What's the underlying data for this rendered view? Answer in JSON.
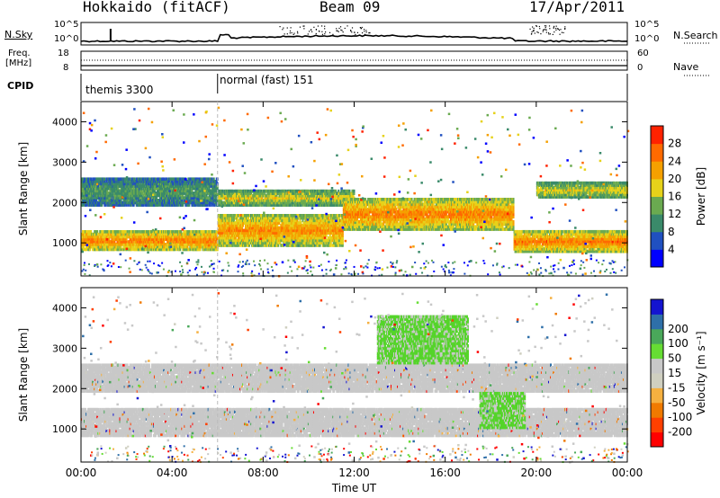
{
  "header": {
    "radar": "Hokkaido (fitACF)",
    "beam": "Beam 09",
    "date": "17/Apr/2011"
  },
  "left_labels": {
    "nsky": "N.Sky",
    "freq_line1": "Freq.",
    "freq_line2": "[MHz]",
    "cpid": "CPID"
  },
  "right_labels": {
    "nsearch": "N.Search",
    "nave": "Nave"
  },
  "noise_axis": {
    "left_ticks": [
      "10^5",
      "10^0"
    ],
    "right_ticks": [
      "10^5",
      "10^0"
    ]
  },
  "freq_axis": {
    "left_ticks": [
      "18",
      "8"
    ],
    "right_ticks": [
      "60",
      "0"
    ]
  },
  "cpid_modes": [
    {
      "label": "themis 3300",
      "start_hour": 0
    },
    {
      "label": "normal (fast) 151",
      "start_hour": 6
    }
  ],
  "colors": {
    "power_scale": [
      "#0000ff",
      "#2050c0",
      "#3a8a6a",
      "#6aaa50",
      "#e6d21a",
      "#f5a000",
      "#ff6a00",
      "#ff2200"
    ],
    "velocity_scale": [
      "#ff0000",
      "#ff4000",
      "#f07a00",
      "#f5b040",
      "#cfcfc0",
      "#c8c8c8",
      "#66dd33",
      "#4aa85a",
      "#2e6fa8",
      "#1414d0"
    ],
    "gray": "#c8c8c8"
  },
  "chart_data": [
    {
      "type": "heatmap",
      "name_key": "power",
      "title": "",
      "xlabel": "",
      "ylabel": "Slant Range [km]",
      "xlim": [
        0,
        24
      ],
      "ylim": [
        180,
        4500
      ],
      "x_ticks": [
        "00:00",
        "04:00",
        "08:00",
        "12:00",
        "16:00",
        "20:00",
        "00:00"
      ],
      "y_ticks": [
        1000,
        2000,
        3000,
        4000
      ],
      "colorbar": {
        "label": "Power [dB]",
        "ticks": [
          4,
          8,
          12,
          16,
          20,
          24,
          28
        ],
        "range": [
          0,
          32
        ]
      },
      "echo_bands": [
        {
          "t_start": 0,
          "t_end": 6,
          "range_low": 800,
          "range_high": 1300,
          "level_db": 28
        },
        {
          "t_start": 0,
          "t_end": 6,
          "range_low": 1900,
          "range_high": 2600,
          "level_db": 12
        },
        {
          "t_start": 6,
          "t_end": 11.5,
          "range_low": 900,
          "range_high": 1700,
          "level_db": 26
        },
        {
          "t_start": 6,
          "t_end": 12,
          "range_low": 1900,
          "range_high": 2300,
          "level_db": 20
        },
        {
          "t_start": 11.5,
          "t_end": 19,
          "range_low": 1300,
          "range_high": 2100,
          "level_db": 27
        },
        {
          "t_start": 19,
          "t_end": 24,
          "range_low": 750,
          "range_high": 1300,
          "level_db": 28
        },
        {
          "t_start": 20,
          "t_end": 24,
          "range_low": 2100,
          "range_high": 2500,
          "level_db": 20
        }
      ]
    },
    {
      "type": "heatmap",
      "name_key": "velocity",
      "title": "",
      "xlabel": "Time UT",
      "ylabel": "Slant Range [km]",
      "xlim": [
        0,
        24
      ],
      "ylim": [
        180,
        4500
      ],
      "x_ticks": [
        "00:00",
        "04:00",
        "08:00",
        "12:00",
        "16:00",
        "20:00",
        "00:00"
      ],
      "y_ticks": [
        1000,
        2000,
        3000,
        4000
      ],
      "colorbar": {
        "label": "Velocity [m s^-1]",
        "ticks": [
          -200,
          -100,
          -50,
          -15,
          15,
          50,
          100,
          200
        ]
      },
      "echo_bands": [
        {
          "t_start": 0,
          "t_end": 24,
          "range_low": 800,
          "range_high": 1500,
          "velocity": 0
        },
        {
          "t_start": 0,
          "t_end": 24,
          "range_low": 1900,
          "range_high": 2600,
          "velocity": 0
        },
        {
          "t_start": 17.5,
          "t_end": 19.5,
          "range_low": 1000,
          "range_high": 1900,
          "velocity": 30
        },
        {
          "t_start": 13,
          "t_end": 17,
          "range_low": 2600,
          "range_high": 3800,
          "velocity": 30
        }
      ]
    }
  ]
}
